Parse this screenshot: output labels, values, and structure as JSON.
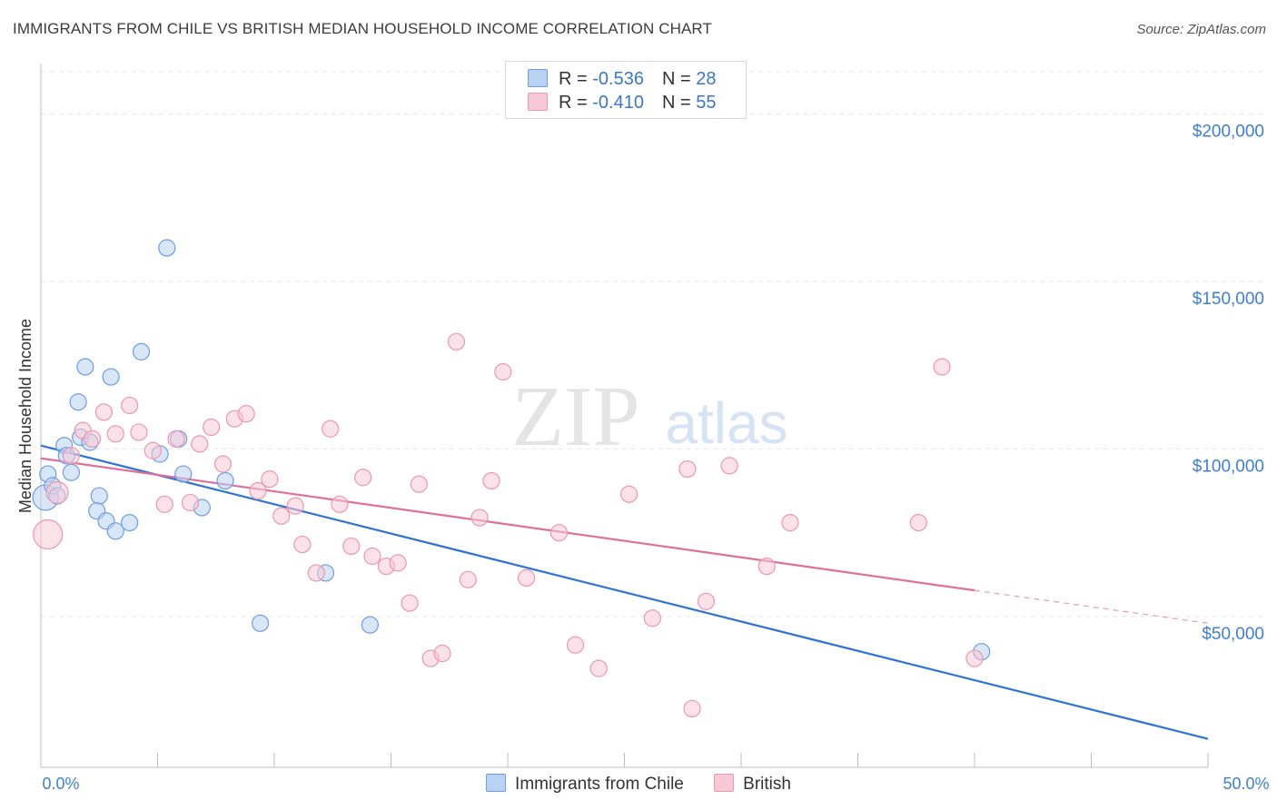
{
  "chart_data": {
    "type": "scatter",
    "title": "IMMIGRANTS FROM CHILE VS BRITISH MEDIAN HOUSEHOLD INCOME CORRELATION CHART",
    "source": "Source: ZipAtlas.com",
    "xlabel": "",
    "ylabel": "Median Household Income",
    "xlim": [
      0,
      50
    ],
    "ylim": [
      5000,
      215000
    ],
    "x_tick_labels": [
      "0.0%",
      "50.0%"
    ],
    "y_ticks": [
      50000,
      100000,
      150000,
      200000
    ],
    "y_tick_labels": [
      "$50,000",
      "$100,000",
      "$150,000",
      "$200,000"
    ],
    "watermark": {
      "zip": "ZIP",
      "atlas": "atlas"
    },
    "legend": {
      "rows": [
        {
          "r_label": "R = ",
          "r_value": "-0.536",
          "n_label": "N = ",
          "n_value": "28"
        },
        {
          "r_label": "R = ",
          "r_value": "-0.410",
          "n_label": "N = ",
          "n_value": "55"
        }
      ]
    },
    "series": [
      {
        "name": "Immigrants from Chile",
        "color": "#6d9de0",
        "fill": "#b9d2f2",
        "line_color": "#2f73d4",
        "trend": {
          "x": [
            0,
            50
          ],
          "y": [
            101000,
            13500
          ],
          "dashed_from": null
        },
        "points": [
          [
            0.2,
            85500,
            14
          ],
          [
            0.3,
            92500,
            9
          ],
          [
            0.5,
            89000,
            9
          ],
          [
            0.7,
            86000,
            9
          ],
          [
            1.0,
            101000,
            9
          ],
          [
            1.1,
            98000,
            9
          ],
          [
            1.3,
            93000,
            9
          ],
          [
            1.6,
            114000,
            9
          ],
          [
            1.7,
            103500,
            9
          ],
          [
            1.9,
            124500,
            9
          ],
          [
            2.1,
            102000,
            9
          ],
          [
            2.5,
            86000,
            9
          ],
          [
            2.4,
            81500,
            9
          ],
          [
            2.8,
            78500,
            9
          ],
          [
            3.0,
            121500,
            9
          ],
          [
            3.2,
            75500,
            9
          ],
          [
            3.8,
            78000,
            9
          ],
          [
            4.3,
            129000,
            9
          ],
          [
            5.1,
            98500,
            9
          ],
          [
            5.4,
            160000,
            9
          ],
          [
            5.9,
            103000,
            9
          ],
          [
            6.1,
            92500,
            9
          ],
          [
            6.9,
            82500,
            9
          ],
          [
            7.9,
            90500,
            9
          ],
          [
            9.4,
            48000,
            9
          ],
          [
            12.2,
            63000,
            9
          ],
          [
            14.1,
            47500,
            9
          ],
          [
            40.3,
            39500,
            9
          ]
        ]
      },
      {
        "name": "British",
        "color": "#eb97b1",
        "fill": "#f7c8d6",
        "line_color": "#e07099",
        "trend": {
          "x": [
            0,
            40
          ],
          "y": [
            97200,
            57800
          ],
          "dashed_to": [
            50,
            48000
          ]
        },
        "points": [
          [
            0.3,
            74500,
            16
          ],
          [
            0.7,
            87000,
            12
          ],
          [
            1.3,
            98000,
            9
          ],
          [
            1.8,
            105500,
            9
          ],
          [
            2.2,
            103000,
            9
          ],
          [
            2.7,
            111000,
            9
          ],
          [
            3.2,
            104500,
            9
          ],
          [
            3.8,
            113000,
            9
          ],
          [
            4.2,
            105000,
            9
          ],
          [
            4.8,
            99500,
            9
          ],
          [
            5.3,
            83500,
            9
          ],
          [
            5.8,
            103000,
            9
          ],
          [
            6.4,
            84000,
            9
          ],
          [
            6.8,
            101500,
            9
          ],
          [
            7.3,
            106500,
            9
          ],
          [
            7.8,
            95500,
            9
          ],
          [
            8.3,
            109000,
            9
          ],
          [
            8.8,
            110500,
            9
          ],
          [
            9.3,
            87500,
            9
          ],
          [
            9.8,
            91000,
            9
          ],
          [
            10.3,
            80000,
            9
          ],
          [
            10.9,
            83000,
            9
          ],
          [
            11.2,
            71500,
            9
          ],
          [
            11.8,
            63000,
            9
          ],
          [
            12.4,
            106000,
            9
          ],
          [
            12.8,
            83500,
            9
          ],
          [
            13.3,
            71000,
            9
          ],
          [
            13.8,
            91500,
            9
          ],
          [
            14.2,
            68000,
            9
          ],
          [
            14.8,
            65000,
            9
          ],
          [
            15.3,
            66000,
            9
          ],
          [
            15.8,
            54000,
            9
          ],
          [
            16.2,
            89500,
            9
          ],
          [
            16.7,
            37500,
            9
          ],
          [
            17.2,
            39000,
            9
          ],
          [
            17.8,
            132000,
            9
          ],
          [
            18.3,
            61000,
            9
          ],
          [
            18.8,
            79500,
            9
          ],
          [
            19.3,
            90500,
            9
          ],
          [
            19.8,
            123000,
            9
          ],
          [
            20.8,
            61500,
            9
          ],
          [
            22.2,
            75000,
            9
          ],
          [
            22.9,
            41500,
            9
          ],
          [
            23.9,
            34500,
            9
          ],
          [
            25.2,
            86500,
            9
          ],
          [
            26.2,
            49500,
            9
          ],
          [
            27.7,
            94000,
            9
          ],
          [
            27.9,
            22500,
            9
          ],
          [
            28.5,
            54500,
            9
          ],
          [
            29.5,
            95000,
            9
          ],
          [
            31.1,
            65000,
            9
          ],
          [
            32.1,
            78000,
            9
          ],
          [
            37.6,
            78000,
            9
          ],
          [
            38.6,
            124500,
            9
          ],
          [
            40.0,
            37500,
            9
          ]
        ]
      }
    ]
  }
}
